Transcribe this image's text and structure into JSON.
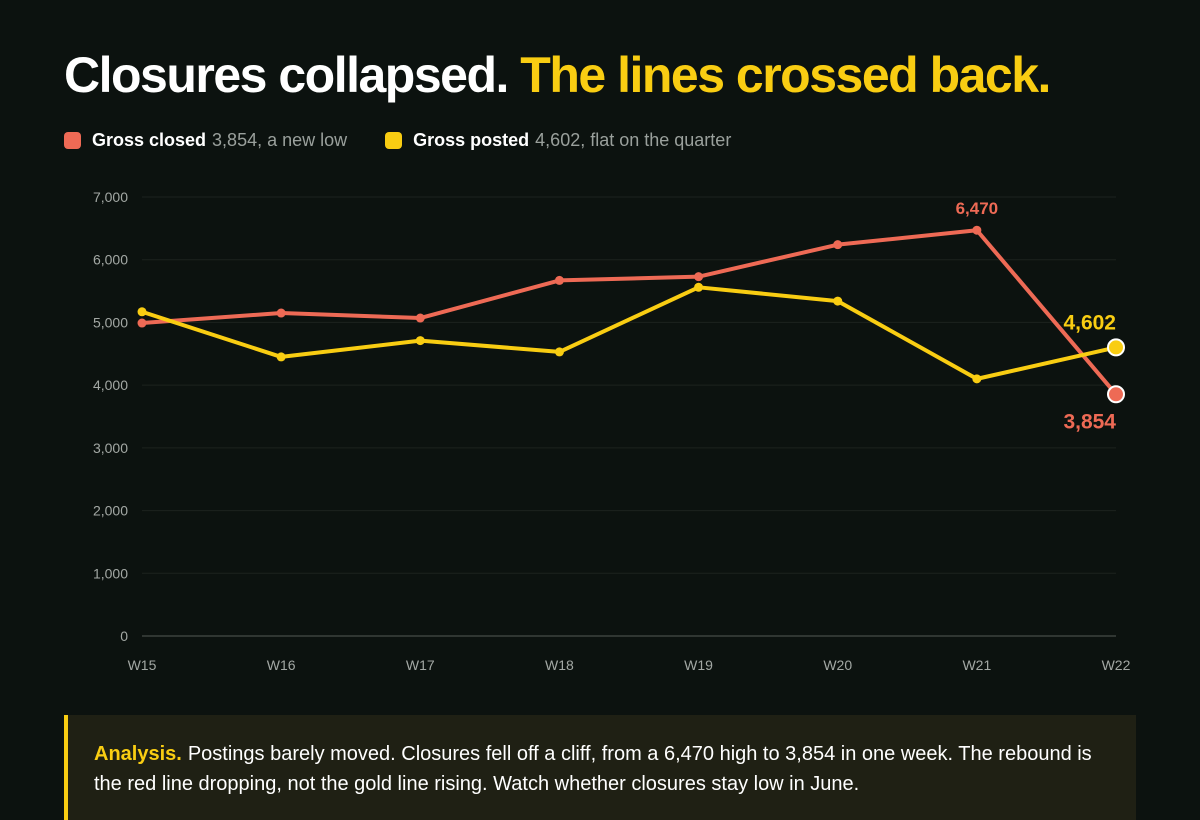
{
  "header": {
    "title_main": "Closures collapsed.",
    "title_accent": "The lines crossed back."
  },
  "legend": [
    {
      "name": "Gross closed",
      "note": "3,854, a new low",
      "color": "#ee6a55"
    },
    {
      "name": "Gross posted",
      "note": "4,602, flat on the quarter",
      "color": "#f9cd12"
    }
  ],
  "chart_data": {
    "type": "line",
    "categories": [
      "W15",
      "W16",
      "W17",
      "W18",
      "W19",
      "W20",
      "W21",
      "W22"
    ],
    "series": [
      {
        "name": "Gross closed",
        "color": "#ee6a55",
        "values": [
          4990,
          5150,
          5070,
          5670,
          5730,
          6240,
          6470,
          3854
        ]
      },
      {
        "name": "Gross posted",
        "color": "#f9cd12",
        "values": [
          5170,
          4450,
          4710,
          4530,
          5560,
          5340,
          4100,
          4602
        ]
      }
    ],
    "ylim": [
      0,
      7000
    ],
    "yticks": [
      0,
      1000,
      2000,
      3000,
      4000,
      5000,
      6000,
      7000
    ],
    "ytick_labels": [
      "0",
      "1,000",
      "2,000",
      "3,000",
      "4,000",
      "5,000",
      "6,000",
      "7,000"
    ],
    "grid": true,
    "annotations": [
      {
        "series": 0,
        "index": 6,
        "text": "6,470",
        "placement": "above"
      },
      {
        "series": 0,
        "index": 7,
        "text": "3,854",
        "placement": "below"
      },
      {
        "series": 1,
        "index": 7,
        "text": "4,602",
        "placement": "above"
      }
    ]
  },
  "analysis": {
    "label": "Analysis.",
    "text": "Postings barely moved. Closures fell off a cliff, from a 6,470 high to 3,854 in one week. The rebound is the red line dropping, not the gold line rising. Watch whether closures stay low in June."
  }
}
